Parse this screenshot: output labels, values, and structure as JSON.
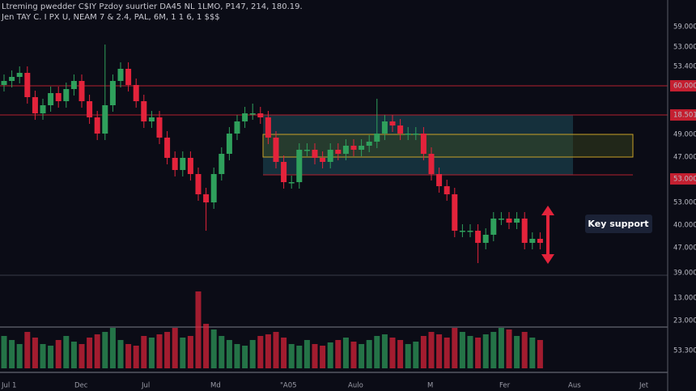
{
  "chart_data": {
    "type": "candlestick",
    "header": [
      "Ltreming pwedder C$IY Pzdoy suurtier DA45 NL 1LMO, P147, 214, 180.19.",
      "Jen TAY C. I PX U, NEAM 7 & 2.4, PAL, 6M, 1 1 6, 1 $$$"
    ],
    "annotation": "Key support",
    "y_labels": [
      "59.000",
      "53.000",
      "53.400",
      "60.000",
      "18.501",
      "49.000",
      "47.000",
      "53.000",
      "53.000",
      "40.000",
      "47.000",
      "39.000",
      "13.000",
      "23.000",
      "53.300"
    ],
    "x_labels": [
      "Jul 1",
      "Dec",
      "Jul",
      "Md",
      "\"A05",
      "Aulo",
      "M",
      "Fer",
      "Aus",
      "Jet"
    ],
    "ylim": [
      30,
      62
    ],
    "vlim": [
      0,
      100
    ],
    "up_color": "#2fa05c",
    "down_color": "#e3233b",
    "open": [
      53.5,
      54,
      54.5,
      55,
      52,
      50,
      51,
      52.5,
      51.5,
      53,
      54,
      51.5,
      49.5,
      47.5,
      51,
      54,
      55.5,
      53.5,
      51.5,
      49,
      49.5,
      47,
      44.5,
      43,
      44.5,
      42.5,
      40,
      39,
      42.5,
      45,
      47.5,
      49,
      50,
      50,
      49.5,
      47,
      44,
      41.5,
      41.5,
      45.5,
      45.5,
      44.5,
      44,
      45.5,
      45,
      46,
      45.5,
      46,
      46.5,
      47.5,
      49,
      48.5,
      47.5,
      47.5,
      47.5,
      45,
      42.5,
      41,
      40,
      35.5,
      35.5,
      35.5,
      34,
      35,
      37,
      37,
      36.5,
      37,
      34,
      34.5
    ],
    "high": [
      54.8,
      55.3,
      55.8,
      55.8,
      52.8,
      51.8,
      53.3,
      53.3,
      53.8,
      54.8,
      54.8,
      52.3,
      50.3,
      58.5,
      54.8,
      56.3,
      56.3,
      54.3,
      52.3,
      50.3,
      50.3,
      47.8,
      45.3,
      45.3,
      45.3,
      43.3,
      40.8,
      43.3,
      45.8,
      48.3,
      49.8,
      50.8,
      51.2,
      50.8,
      50.3,
      47.8,
      44.8,
      42.3,
      46.3,
      46.3,
      46.3,
      45.3,
      46.3,
      46.3,
      46.8,
      46.8,
      46.8,
      47.3,
      51.8,
      49.8,
      49.8,
      49.3,
      48.3,
      48.3,
      48.3,
      45.8,
      43.3,
      41.8,
      40.8,
      36.3,
      36.3,
      36.3,
      35.8,
      37.8,
      37.8,
      37.8,
      37.8,
      37.8,
      35.3,
      35.3
    ],
    "low": [
      52.7,
      53.2,
      53.7,
      51.2,
      49.2,
      49.2,
      50.2,
      50.7,
      50.7,
      52.2,
      50.7,
      48.7,
      46.7,
      46.7,
      50.2,
      53.2,
      52.7,
      50.7,
      48.2,
      48.2,
      46.2,
      43.7,
      42.2,
      42.2,
      41.7,
      39.2,
      35.5,
      38.2,
      41.7,
      44.2,
      46.7,
      48.2,
      49.2,
      48.7,
      46.2,
      43.2,
      40.7,
      40.7,
      40.7,
      44.7,
      43.7,
      43.2,
      43.2,
      44.2,
      44.2,
      44.7,
      44.7,
      45.2,
      45.7,
      46.7,
      47.7,
      46.7,
      46.7,
      46.7,
      44.2,
      41.7,
      40.2,
      39.2,
      34.7,
      34.7,
      34.7,
      31.5,
      33.2,
      34.2,
      36.2,
      35.7,
      35.7,
      33.2,
      33.2,
      33.2
    ],
    "close": [
      54,
      54.5,
      55,
      52,
      50,
      51,
      52.5,
      51.5,
      53,
      54,
      51.5,
      49.5,
      47.5,
      51,
      54,
      55.5,
      53.5,
      51.5,
      49,
      49.5,
      47,
      44.5,
      43,
      44.5,
      42.5,
      40,
      39,
      42.5,
      45,
      47.5,
      49,
      50,
      50,
      49.5,
      47,
      44,
      41.5,
      41.5,
      45.5,
      45.5,
      44.5,
      44,
      45.5,
      45,
      46,
      45.5,
      46,
      46.5,
      47.5,
      49,
      48.5,
      47.5,
      47.5,
      47.5,
      45,
      42.5,
      41,
      40,
      35.5,
      35.5,
      35.5,
      34,
      35,
      37,
      37,
      36.5,
      37,
      34,
      34.5,
      34
    ],
    "volume": [
      40,
      35,
      30,
      45,
      38,
      30,
      28,
      35,
      40,
      33,
      30,
      38,
      42,
      45,
      50,
      35,
      30,
      28,
      40,
      38,
      42,
      45,
      50,
      38,
      40,
      95,
      55,
      48,
      40,
      35,
      30,
      28,
      35,
      40,
      42,
      45,
      38,
      30,
      28,
      35,
      30,
      28,
      32,
      35,
      38,
      33,
      30,
      35,
      40,
      42,
      38,
      35,
      30,
      33,
      40,
      45,
      42,
      38,
      50,
      45,
      40,
      38,
      42,
      45,
      50,
      48,
      40,
      45,
      38,
      35
    ]
  }
}
